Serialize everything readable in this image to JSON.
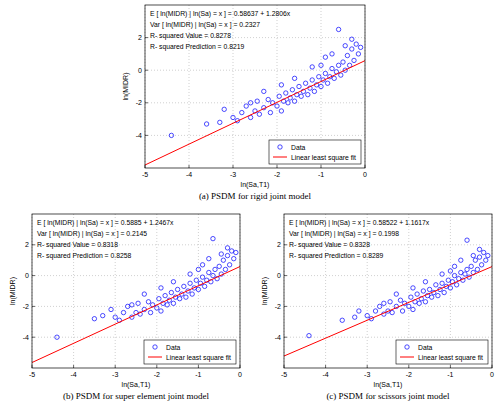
{
  "chart_data": [
    {
      "type": "scatter",
      "title": "(a) PSDM for rigid joint model",
      "x_label": "ln(Sa,T1)",
      "y_label": "ln(MIDR)",
      "annotations": [
        "E [ ln(MIDR) | ln(Sa) = x ] = 0.58637 + 1.2806x",
        "Var [ ln(MIDR) | ln(Sa) = x ] = 0.2327",
        "R- squared Value = 0.8278",
        "R- squared Prediction = 0.8219"
      ],
      "xlim": [
        -5,
        0
      ],
      "xticks": [
        -5,
        -4,
        -3,
        -2,
        -1,
        0
      ],
      "ylim": [
        -6,
        4
      ],
      "yticks": [
        -4,
        -2,
        0,
        2
      ],
      "grid": true,
      "legend": "bottom-right",
      "series": [
        {
          "name": "Data",
          "type": "scatter",
          "marker": "circle",
          "color": "#0000ff",
          "x": [
            -4.4,
            -3.6,
            -3.3,
            -3.2,
            -3.0,
            -2.9,
            -2.8,
            -2.7,
            -2.6,
            -2.5,
            -2.45,
            -2.4,
            -2.3,
            -2.2,
            -2.15,
            -2.1,
            -2.0,
            -1.95,
            -1.9,
            -1.85,
            -1.8,
            -1.75,
            -1.7,
            -1.65,
            -1.6,
            -1.55,
            -1.5,
            -1.45,
            -1.4,
            -1.35,
            -1.3,
            -1.25,
            -1.2,
            -1.15,
            -1.1,
            -1.05,
            -1.0,
            -0.95,
            -0.9,
            -0.85,
            -0.8,
            -0.75,
            -0.7,
            -0.65,
            -0.6,
            -0.55,
            -0.5,
            -0.45,
            -0.4,
            -0.35,
            -0.3,
            -0.25,
            -0.2,
            -0.15,
            -0.6,
            -0.9,
            -1.2,
            -0.3,
            -0.1,
            -2.3,
            -1.6,
            -0.75,
            -1.9,
            -2.6,
            -1.0,
            -0.45
          ],
          "values": [
            -4.0,
            -3.3,
            -3.2,
            -2.4,
            -2.9,
            -3.1,
            -2.6,
            -2.2,
            -2.9,
            -2.5,
            -1.9,
            -2.7,
            -2.3,
            -1.8,
            -2.6,
            -2.0,
            -2.2,
            -1.6,
            -2.5,
            -1.9,
            -1.4,
            -2.0,
            -1.7,
            -1.2,
            -1.9,
            -1.5,
            -1.0,
            -1.6,
            -1.3,
            -0.8,
            -1.5,
            -1.1,
            -0.6,
            -1.3,
            -0.9,
            -0.4,
            -1.0,
            -0.6,
            -0.2,
            -0.8,
            -0.4,
            0.1,
            -0.5,
            -0.1,
            0.3,
            -0.3,
            0.5,
            0.0,
            0.9,
            0.3,
            1.3,
            0.6,
            1.6,
            1.0,
            2.5,
            0.8,
            0.2,
            1.9,
            1.4,
            -1.3,
            -0.5,
            1.0,
            -0.9,
            -2.0,
            0.3,
            1.5
          ]
        },
        {
          "name": "Linear least square fit",
          "type": "line",
          "line_style": "solid",
          "color": "#ff0000",
          "x": [
            -5,
            0
          ],
          "values": [
            -5.81663,
            0.58637
          ]
        }
      ]
    },
    {
      "type": "scatter",
      "title": "(b) PSDM for super element joint model",
      "x_label": "ln(Sa,T1)",
      "y_label": "ln(MIDR)",
      "annotations": [
        "E [ ln(MIDR) | ln(Sa) = x ] = 0.5885 + 1.2467x",
        "Var [ ln(MIDR) | ln(Sa) = x ] = 0.2145",
        "R- squared Value = 0.8318",
        "R- squared Prediction = 0.8258"
      ],
      "xlim": [
        -5,
        0
      ],
      "xticks": [
        -5,
        -4,
        -3,
        -2,
        -1,
        0
      ],
      "ylim": [
        -6,
        4
      ],
      "yticks": [
        -4,
        -2,
        0,
        2
      ],
      "grid": true,
      "legend": "bottom-right",
      "series": [
        {
          "name": "Data",
          "type": "scatter",
          "marker": "circle",
          "color": "#0000ff",
          "x": [
            -4.4,
            -3.5,
            -3.3,
            -3.1,
            -3.0,
            -2.9,
            -2.8,
            -2.7,
            -2.6,
            -2.5,
            -2.45,
            -2.4,
            -2.3,
            -2.2,
            -2.15,
            -2.1,
            -2.0,
            -1.95,
            -1.9,
            -1.85,
            -1.8,
            -1.75,
            -1.7,
            -1.65,
            -1.6,
            -1.55,
            -1.5,
            -1.45,
            -1.4,
            -1.35,
            -1.3,
            -1.25,
            -1.2,
            -1.15,
            -1.1,
            -1.05,
            -1.0,
            -0.95,
            -0.9,
            -0.85,
            -0.8,
            -0.75,
            -0.7,
            -0.65,
            -0.6,
            -0.55,
            -0.5,
            -0.45,
            -0.4,
            -0.35,
            -0.3,
            -0.25,
            -0.2,
            -0.15,
            -0.65,
            -0.9,
            -1.2,
            -0.3,
            -0.1,
            -2.3,
            -1.6,
            -0.75,
            -1.9,
            -2.6,
            -1.0,
            -0.45
          ],
          "values": [
            -4.0,
            -2.8,
            -2.6,
            -2.2,
            -2.7,
            -2.9,
            -2.4,
            -2.0,
            -2.7,
            -2.4,
            -1.8,
            -2.5,
            -2.2,
            -1.7,
            -2.4,
            -1.9,
            -2.1,
            -1.5,
            -2.3,
            -1.8,
            -1.3,
            -1.9,
            -1.6,
            -1.1,
            -1.8,
            -1.4,
            -0.9,
            -1.5,
            -1.2,
            -0.7,
            -1.4,
            -1.0,
            -0.5,
            -1.2,
            -0.8,
            -0.3,
            -0.9,
            -0.5,
            -0.1,
            -0.7,
            -0.3,
            0.2,
            -0.4,
            0.0,
            0.4,
            -0.2,
            0.6,
            0.1,
            1.0,
            0.4,
            1.3,
            0.7,
            1.6,
            1.1,
            2.4,
            0.7,
            0.1,
            1.8,
            1.5,
            -1.2,
            -0.4,
            1.1,
            -0.8,
            -1.9,
            0.4,
            1.4
          ]
        },
        {
          "name": "Linear least square fit",
          "type": "line",
          "line_style": "solid",
          "color": "#ff0000",
          "x": [
            -5,
            0
          ],
          "values": [
            -5.645,
            0.5885
          ]
        }
      ]
    },
    {
      "type": "scatter",
      "title": "(c) PSDM for scissors joint model",
      "x_label": "ln(Sa,T1)",
      "y_label": "ln(MIDR)",
      "annotations": [
        "E [ ln(MIDR) | ln(Sa) = x ] = 0.58522 + 1.1617x",
        "Var [ ln(MIDR) | ln(Sa) = x ] = 0.1998",
        "R- squared Value = 0.8328",
        "R- squared Prediction = 0.8289"
      ],
      "xlim": [
        -5,
        0
      ],
      "xticks": [
        -5,
        -4,
        -3,
        -2,
        -1,
        0
      ],
      "ylim": [
        -6,
        4
      ],
      "yticks": [
        -4,
        -2,
        0,
        2
      ],
      "grid": true,
      "legend": "bottom-right",
      "series": [
        {
          "name": "Data",
          "type": "scatter",
          "marker": "circle",
          "color": "#0000ff",
          "x": [
            -4.4,
            -3.6,
            -3.3,
            -3.2,
            -3.0,
            -2.9,
            -2.8,
            -2.7,
            -2.6,
            -2.5,
            -2.45,
            -2.4,
            -2.3,
            -2.2,
            -2.15,
            -2.1,
            -2.0,
            -1.95,
            -1.9,
            -1.85,
            -1.8,
            -1.75,
            -1.7,
            -1.65,
            -1.6,
            -1.55,
            -1.5,
            -1.45,
            -1.4,
            -1.35,
            -1.3,
            -1.25,
            -1.2,
            -1.15,
            -1.1,
            -1.05,
            -1.0,
            -0.95,
            -0.9,
            -0.85,
            -0.8,
            -0.75,
            -0.7,
            -0.65,
            -0.6,
            -0.55,
            -0.5,
            -0.45,
            -0.4,
            -0.35,
            -0.3,
            -0.25,
            -0.2,
            -0.15,
            -0.6,
            -0.9,
            -1.2,
            -0.3,
            -0.1,
            -2.3,
            -1.6,
            -0.75,
            -1.9,
            -2.6,
            -1.0,
            -0.45
          ],
          "values": [
            -3.9,
            -2.9,
            -2.7,
            -2.3,
            -2.6,
            -2.8,
            -2.3,
            -2.0,
            -2.5,
            -2.3,
            -1.7,
            -2.4,
            -2.0,
            -1.6,
            -2.3,
            -1.8,
            -2.0,
            -1.4,
            -2.2,
            -1.7,
            -1.2,
            -1.8,
            -1.5,
            -1.0,
            -1.7,
            -1.3,
            -0.9,
            -1.4,
            -1.1,
            -0.6,
            -1.3,
            -0.9,
            -0.5,
            -1.1,
            -0.7,
            -0.3,
            -0.8,
            -0.4,
            0.0,
            -0.6,
            -0.2,
            0.2,
            -0.3,
            0.1,
            0.4,
            -0.1,
            0.6,
            0.2,
            1.0,
            0.4,
            1.2,
            0.7,
            1.5,
            1.0,
            2.3,
            0.6,
            0.1,
            1.7,
            1.3,
            -1.2,
            -0.4,
            1.0,
            -0.8,
            -1.8,
            0.3,
            1.3
          ]
        },
        {
          "name": "Linear least square fit",
          "type": "line",
          "line_style": "solid",
          "color": "#ff0000",
          "x": [
            -5,
            0
          ],
          "values": [
            -5.22328,
            0.58522
          ]
        }
      ]
    }
  ]
}
